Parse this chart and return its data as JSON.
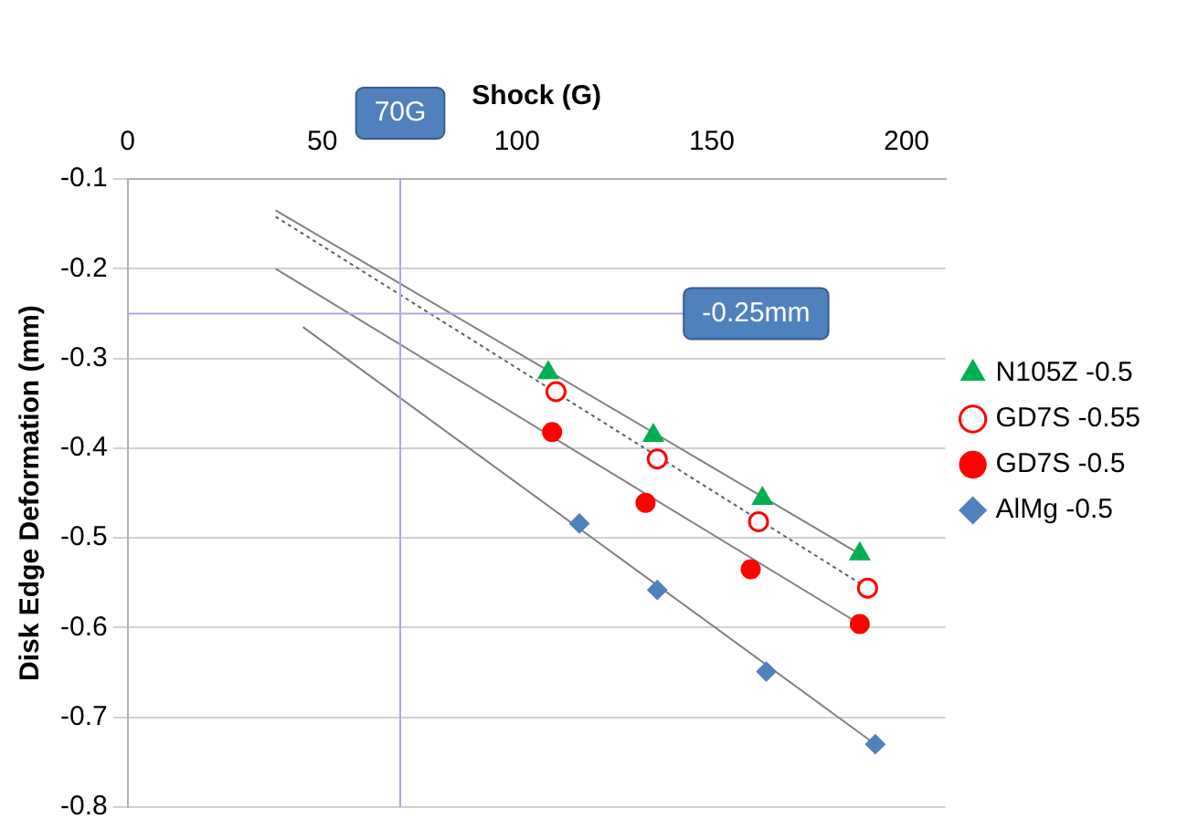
{
  "chart_data": {
    "type": "scatter",
    "xlabel": "Shock (G)",
    "ylabel": "Disk Edge Deformation (mm)",
    "xlim": [
      0,
      210
    ],
    "xticks": [
      0,
      50,
      100,
      150,
      200
    ],
    "ylim": [
      -0.8,
      -0.1
    ],
    "yticks": [
      -0.1,
      -0.2,
      -0.3,
      -0.4,
      -0.5,
      -0.6,
      -0.7,
      -0.8
    ],
    "grid": "y",
    "legend": "right",
    "series": [
      {
        "name": "N105Z -0.5",
        "marker": "triangle",
        "color": "#00b050",
        "x": [
          108,
          135,
          163,
          188
        ],
        "values": [
          -0.316,
          -0.386,
          -0.456,
          -0.518
        ]
      },
      {
        "name": "GD7S -0.55",
        "marker": "circle-open",
        "color": "#ff0000",
        "x": [
          110,
          136,
          162,
          190
        ],
        "values": [
          -0.337,
          -0.412,
          -0.482,
          -0.556
        ]
      },
      {
        "name": "GD7S -0.5",
        "marker": "circle",
        "color": "#ff0000",
        "x": [
          109,
          133,
          160,
          188
        ],
        "values": [
          -0.382,
          -0.461,
          -0.535,
          -0.596
        ]
      },
      {
        "name": "AlMg -0.5",
        "marker": "diamond",
        "color": "#4f81bd",
        "x": [
          116,
          136,
          164,
          192
        ],
        "values": [
          -0.484,
          -0.558,
          -0.649,
          -0.73
        ]
      },
      {
        "type": "line",
        "marker": "none",
        "line_style": "solid",
        "color": "#808080",
        "x": [
          38,
          188
        ],
        "values": [
          -0.135,
          -0.518
        ]
      },
      {
        "type": "line",
        "marker": "none",
        "line_style": "dotted",
        "color": "#606060",
        "x": [
          38,
          190
        ],
        "values": [
          -0.142,
          -0.556
        ]
      },
      {
        "type": "line",
        "marker": "none",
        "line_style": "solid",
        "color": "#808080",
        "x": [
          38,
          188
        ],
        "values": [
          -0.2,
          -0.596
        ]
      },
      {
        "type": "line",
        "marker": "none",
        "line_style": "solid",
        "color": "#808080",
        "x": [
          45,
          192
        ],
        "values": [
          -0.265,
          -0.73
        ]
      }
    ],
    "ref_lines": [
      {
        "axis": "x",
        "value": 70,
        "label": "70G",
        "color": "#b9a3e3"
      },
      {
        "axis": "y",
        "value": -0.25,
        "label": "-0.25mm",
        "color": "#b9a3e3"
      }
    ]
  }
}
